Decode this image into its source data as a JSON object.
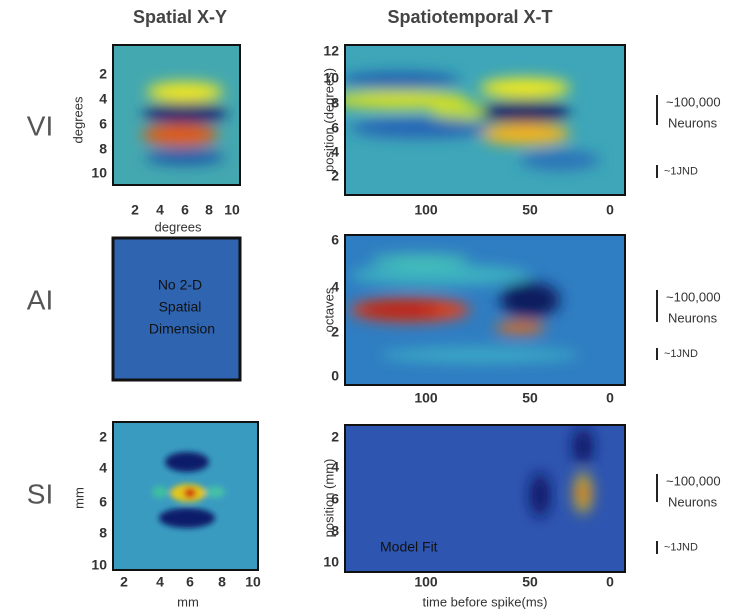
{
  "columns": [
    "Spatial X-Y",
    "Spatiotemporal X-T"
  ],
  "rows": [
    {
      "label": "VI",
      "spatial": {
        "xlabel": "degrees",
        "ylabel": "degrees",
        "xticks": [
          "2",
          "4",
          "6",
          "8",
          "10"
        ],
        "yticks": [
          "2",
          "4",
          "6",
          "8",
          "10"
        ]
      },
      "temporal": {
        "ylabel": "position (degrees)",
        "xticks": [
          "100",
          "50",
          "0"
        ],
        "yticks": [
          "2",
          "4",
          "6",
          "8",
          "10",
          "12"
        ]
      },
      "scale": {
        "neurons": [
          "~100,000",
          "Neurons"
        ],
        "jnd": "~1JND"
      }
    },
    {
      "label": "AI",
      "spatial": {
        "text": [
          "No 2-D",
          "Spatial",
          "Dimension"
        ]
      },
      "temporal": {
        "ylabel": "octaves",
        "xticks": [
          "100",
          "50",
          "0"
        ],
        "yticks": [
          "0",
          "2",
          "4",
          "6"
        ]
      },
      "scale": {
        "neurons": [
          "~100,000",
          "Neurons"
        ],
        "jnd": "~1JND"
      }
    },
    {
      "label": "SI",
      "spatial": {
        "xlabel": "mm",
        "ylabel": "mm",
        "xticks": [
          "2",
          "4",
          "6",
          "8",
          "10"
        ],
        "yticks": [
          "2",
          "4",
          "6",
          "8",
          "10"
        ]
      },
      "temporal": {
        "xlabel": "time before spike(ms)",
        "ylabel": "position (mm)",
        "note": "Model Fit",
        "xticks": [
          "100",
          "50",
          "0"
        ],
        "yticks": [
          "2",
          "4",
          "6",
          "8",
          "10"
        ]
      },
      "scale": {
        "neurons": [
          "~100,000",
          "Neurons"
        ],
        "jnd": "~1JND"
      }
    }
  ]
}
